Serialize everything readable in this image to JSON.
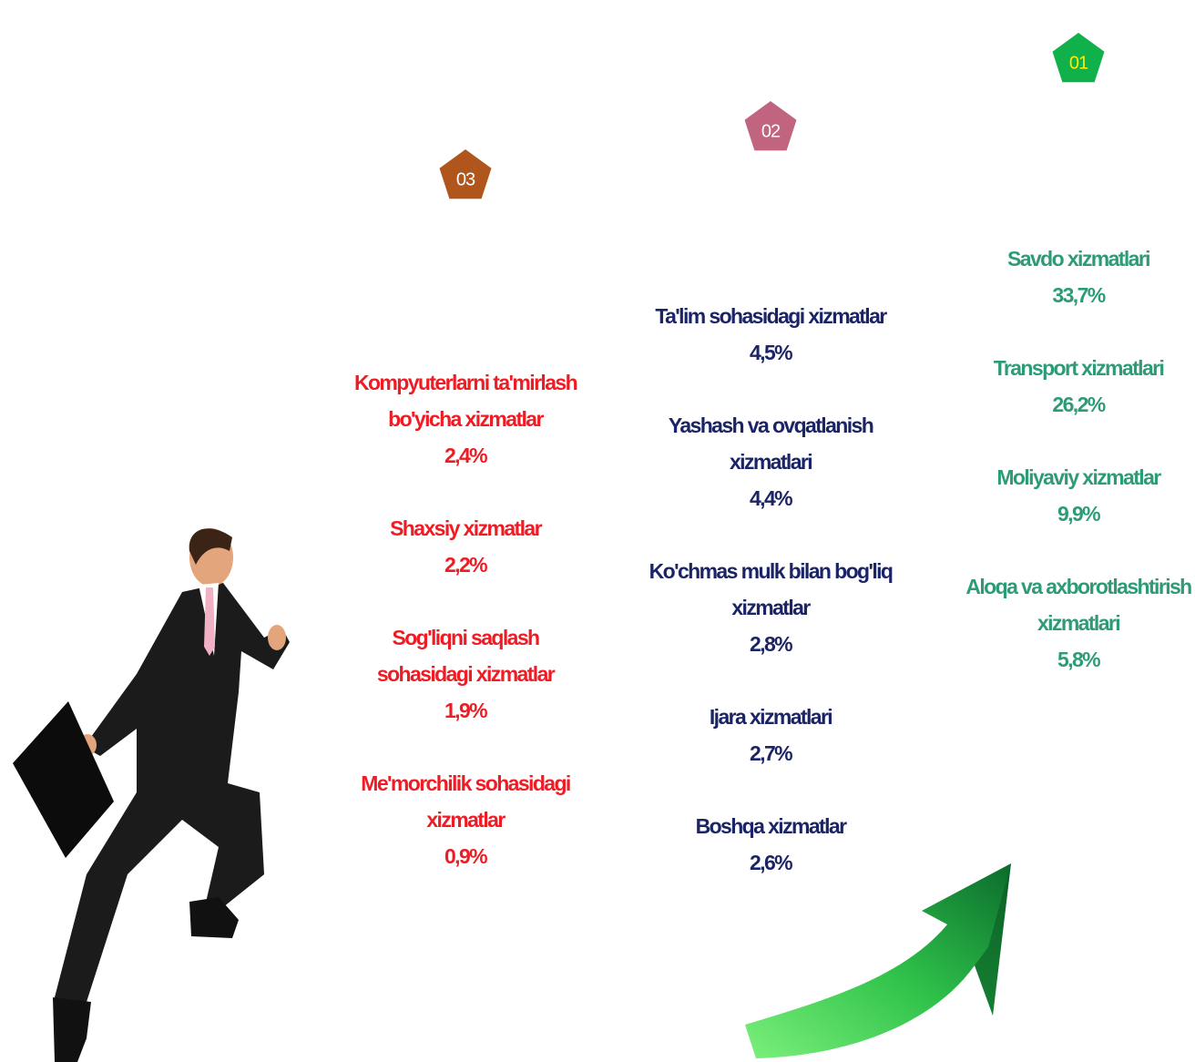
{
  "columns": [
    {
      "badge": "01",
      "badge_color": "#10b04a",
      "text_color": "#2e9b78",
      "items": [
        {
          "label": [
            "Savdo xizmatlari"
          ],
          "value": "33,7%"
        },
        {
          "label": [
            "Transport xizmatlari"
          ],
          "value": "26,2%"
        },
        {
          "label": [
            "Moliyaviy xizmatlar"
          ],
          "value": "9,9%"
        },
        {
          "label": [
            "Aloqa va axborotlashtirish",
            "xizmatlari"
          ],
          "value": "5,8%"
        }
      ]
    },
    {
      "badge": "02",
      "badge_color": "#c0647f",
      "text_color": "#1a2466",
      "items": [
        {
          "label": [
            "Ta'lim sohasidagi xizmatlar"
          ],
          "value": "4,5%"
        },
        {
          "label": [
            "Yashash va ovqatlanish",
            "xizmatlari"
          ],
          "value": "4,4%"
        },
        {
          "label": [
            "Ko'chmas mulk bilan bog'liq",
            "xizmatlar"
          ],
          "value": "2,8%"
        },
        {
          "label": [
            "Ijara xizmatlari"
          ],
          "value": "2,7%"
        },
        {
          "label": [
            "Boshqa xizmatlar"
          ],
          "value": "2,6%"
        }
      ]
    },
    {
      "badge": "03",
      "badge_color": "#b0561c",
      "text_color": "#ee1c24",
      "items": [
        {
          "label": [
            "Kompyuterlarni ta'mirlash",
            "bo'yicha xizmatlar"
          ],
          "value": "2,4%"
        },
        {
          "label": [
            "Shaxsiy xizmatlar"
          ],
          "value": "2,2%"
        },
        {
          "label": [
            "Sog'liqni saqlash",
            "sohasidagi xizmatlar"
          ],
          "value": "1,9%"
        },
        {
          "label": [
            "Me'morchilik sohasidagi",
            "xizmatlar"
          ],
          "value": "0,9%"
        }
      ]
    }
  ]
}
